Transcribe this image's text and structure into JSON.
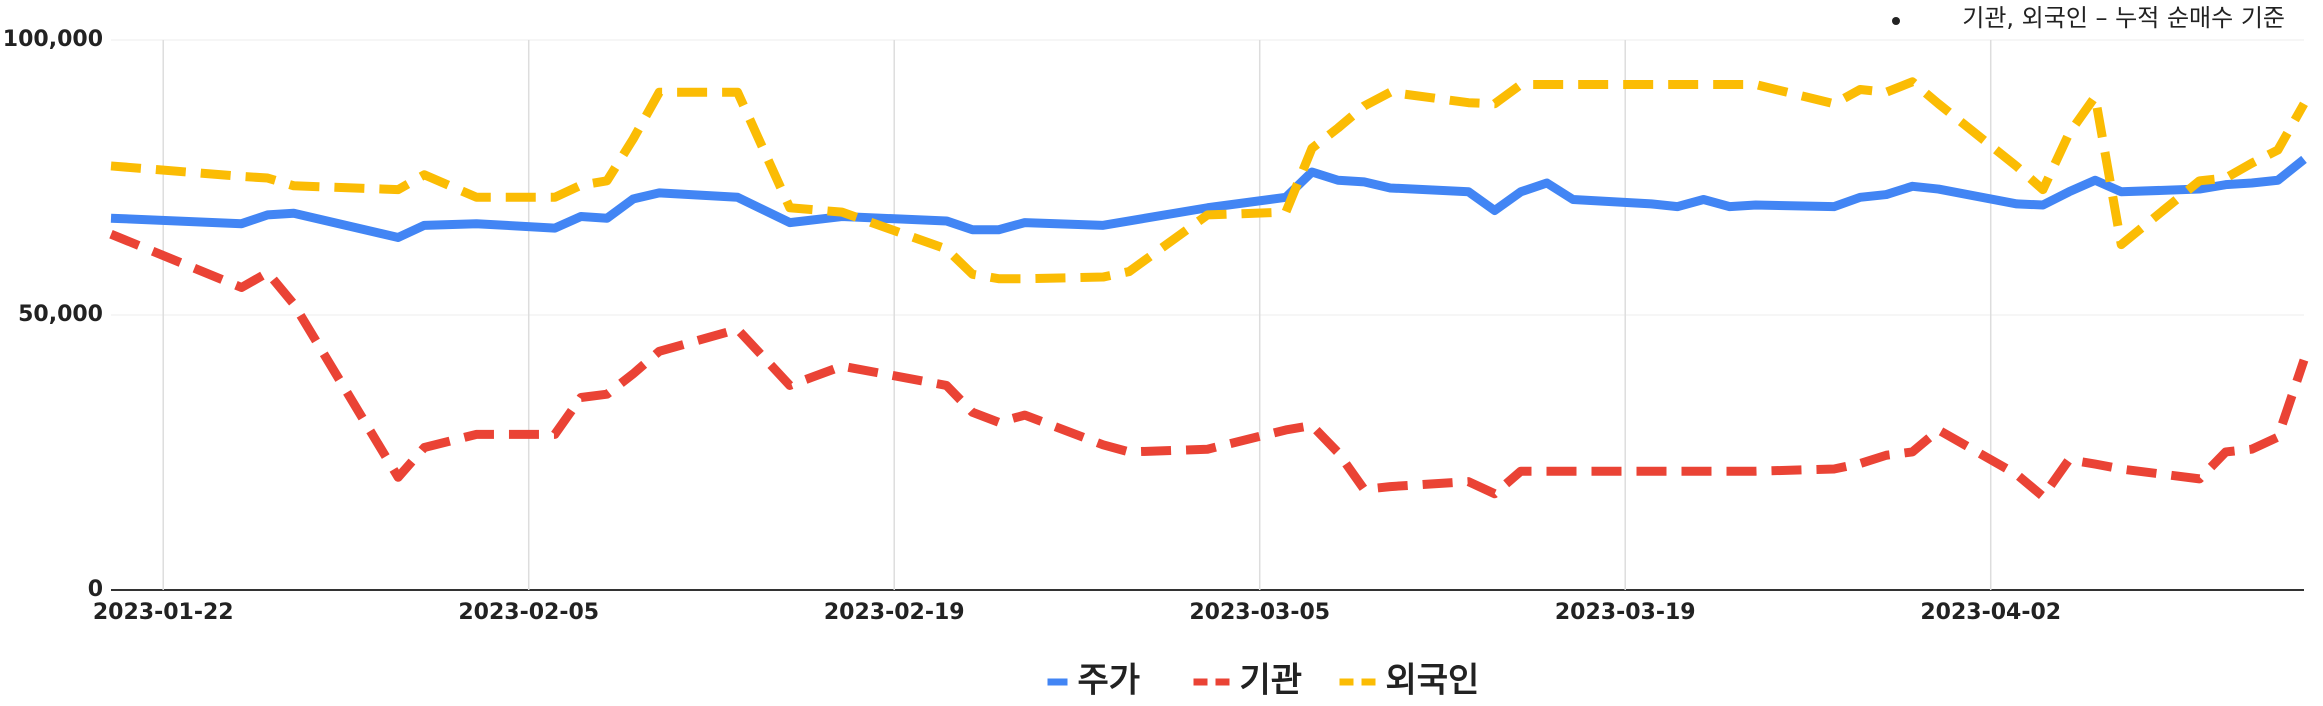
{
  "chart_data": {
    "type": "line",
    "annotation": "기관, 외국인 – 누적 순매수 기준",
    "x": [
      "2023-01-20",
      "2023-01-25",
      "2023-01-26",
      "2023-01-27",
      "2023-01-31",
      "2023-02-01",
      "2023-02-03",
      "2023-02-06",
      "2023-02-07",
      "2023-02-08",
      "2023-02-09",
      "2023-02-10",
      "2023-02-13",
      "2023-02-15",
      "2023-02-17",
      "2023-02-21",
      "2023-02-22",
      "2023-02-23",
      "2023-02-24",
      "2023-02-27",
      "2023-02-28",
      "2023-03-03",
      "2023-03-06",
      "2023-03-07",
      "2023-03-08",
      "2023-03-09",
      "2023-03-10",
      "2023-03-13",
      "2023-03-14",
      "2023-03-15",
      "2023-03-16",
      "2023-03-17",
      "2023-03-20",
      "2023-03-21",
      "2023-03-22",
      "2023-03-23",
      "2023-03-24",
      "2023-03-27",
      "2023-03-28",
      "2023-03-29",
      "2023-03-30",
      "2023-03-31",
      "2023-04-03",
      "2023-04-04",
      "2023-04-05",
      "2023-04-06",
      "2023-04-07",
      "2023-04-10",
      "2023-04-11",
      "2023-04-12",
      "2023-04-13",
      "2023-04-14"
    ],
    "series": [
      {
        "name": "주가",
        "color": "#4285f4",
        "dashed": false,
        "values": [
          67600,
          66600,
          68200,
          68500,
          64100,
          66300,
          66600,
          65800,
          67900,
          67600,
          71100,
          72200,
          71400,
          66800,
          67900,
          67100,
          65500,
          65500,
          66800,
          66300,
          67100,
          69500,
          71400,
          76000,
          74500,
          74200,
          73100,
          72400,
          69000,
          72400,
          74000,
          71000,
          70200,
          69700,
          71000,
          69700,
          70000,
          69700,
          71400,
          71900,
          73400,
          72900,
          70200,
          70000,
          72400,
          74500,
          72400,
          72900,
          73700,
          74000,
          74500,
          78300
        ]
      },
      {
        "name": "기관",
        "color": "#ea4335",
        "dashed": true,
        "values": [
          64700,
          55000,
          57700,
          52000,
          20500,
          25900,
          28300,
          28300,
          35000,
          35600,
          39300,
          43400,
          47400,
          37200,
          40700,
          37200,
          32300,
          30500,
          31800,
          26400,
          25100,
          25600,
          29100,
          29900,
          25000,
          18300,
          18800,
          19700,
          17500,
          21600,
          21600,
          21600,
          21600,
          21600,
          21600,
          21600,
          21600,
          22000,
          23000,
          24500,
          25100,
          29100,
          21000,
          17000,
          23700,
          22900,
          22000,
          20200,
          25100,
          25600,
          27800,
          41800
        ]
      },
      {
        "name": "외국인",
        "color": "#fbbc04",
        "dashed": true,
        "values": [
          77100,
          75200,
          74900,
          73500,
          72800,
          75500,
          71400,
          71400,
          73600,
          74400,
          82000,
          90500,
          90500,
          69500,
          68700,
          62000,
          57400,
          56600,
          56600,
          56900,
          57900,
          68200,
          68700,
          80300,
          84000,
          88000,
          90500,
          88600,
          88400,
          91900,
          91900,
          91900,
          91900,
          91900,
          91900,
          91900,
          91900,
          88400,
          91000,
          90500,
          92400,
          88400,
          77000,
          72800,
          83000,
          89700,
          62800,
          74400,
          74900,
          77600,
          80000,
          88400
        ]
      }
    ],
    "xlim": [
      "2023-01-20",
      "2023-04-14"
    ],
    "xticks": [
      "2023-01-22",
      "2023-02-05",
      "2023-02-19",
      "2023-03-05",
      "2023-03-19",
      "2023-04-02"
    ],
    "ylim": [
      0,
      100000
    ],
    "yticks": [
      0,
      {
        "value": 50000,
        "label": "50,000"
      },
      {
        "value": 100000,
        "label": "100,000"
      }
    ],
    "grid": true,
    "legend": "bottom"
  }
}
